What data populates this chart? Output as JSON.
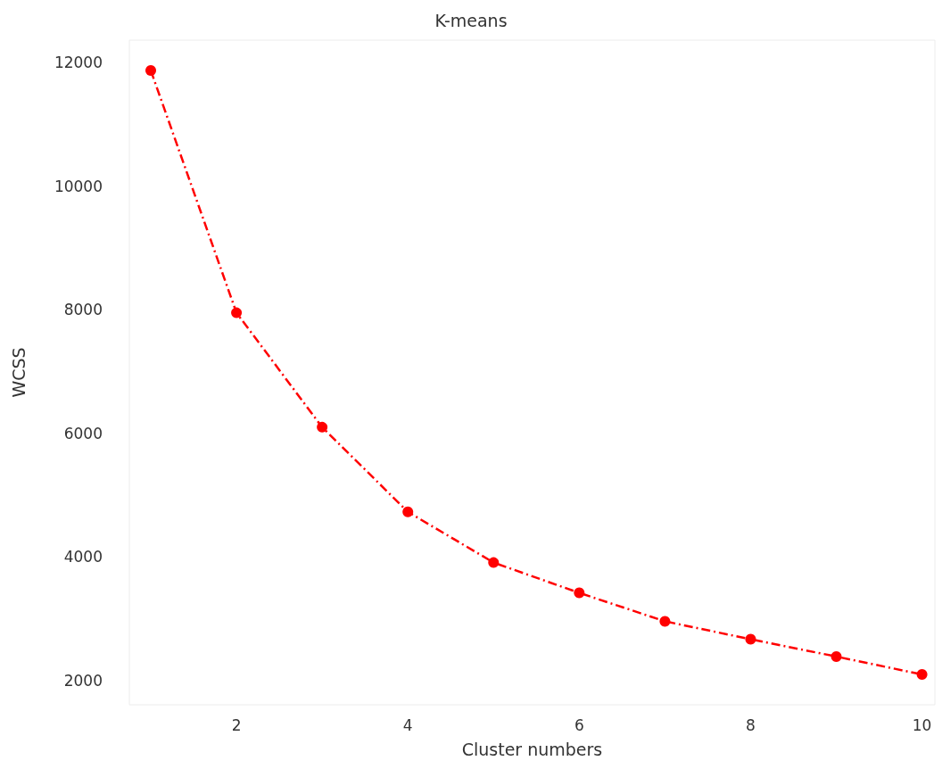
{
  "chart_data": {
    "type": "line",
    "title": "K-means",
    "xlabel": "Cluster numbers",
    "ylabel": "WCSS",
    "x": [
      1,
      2,
      3,
      4,
      5,
      6,
      7,
      8,
      9,
      10
    ],
    "series": [
      {
        "color": "#ff0000",
        "values": [
          11870,
          7950,
          6100,
          4730,
          3910,
          3420,
          2960,
          2670,
          2390,
          2100
        ]
      }
    ],
    "xlim": [
      0.75,
      10.15
    ],
    "xticks": [
      2,
      4,
      6,
      8,
      10
    ],
    "ylim": [
      1610,
      12360
    ],
    "yticks": [
      2000,
      4000,
      6000,
      8000,
      10000,
      12000
    ],
    "grid": false,
    "marker": "circle",
    "line_style": "dashed"
  }
}
